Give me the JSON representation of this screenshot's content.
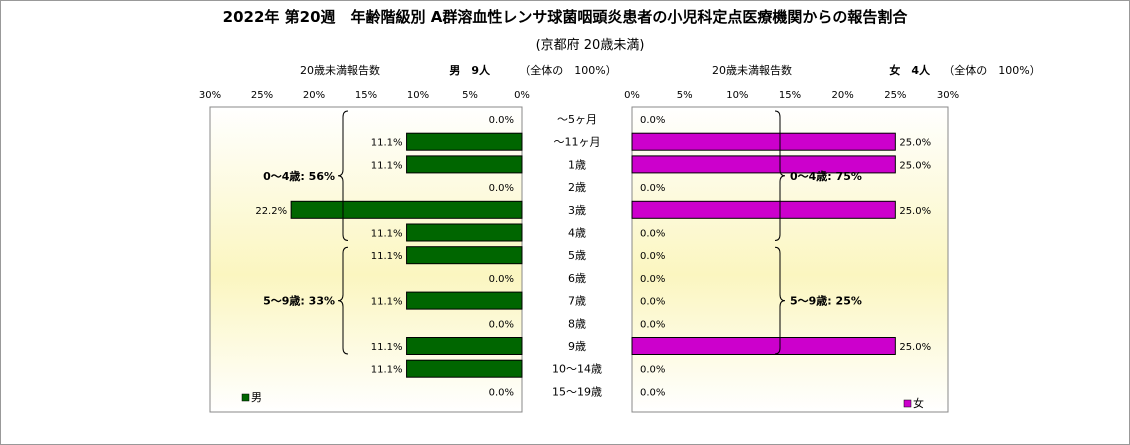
{
  "chart_data": {
    "type": "bar",
    "title": "2022年 第20週　年齢階級別 A群溶血性レンサ球菌咽頭炎患者の小児科定点医療機関からの報告割合",
    "subtitle": "(京都府 20歳未満)",
    "categories": [
      "～5ヶ月",
      "～11ヶ月",
      "1歳",
      "2歳",
      "3歳",
      "4歳",
      "5歳",
      "6歳",
      "7歳",
      "8歳",
      "9歳",
      "10～14歳",
      "15～19歳"
    ],
    "xlim": [
      0,
      30
    ],
    "ticks": [
      "0%",
      "5%",
      "10%",
      "15%",
      "20%",
      "25%",
      "30%"
    ],
    "series": [
      {
        "name": "男",
        "color": "#006600",
        "values": [
          0.0,
          11.1,
          11.1,
          0.0,
          22.2,
          11.1,
          11.1,
          0.0,
          11.1,
          0.0,
          11.1,
          11.1,
          0.0
        ],
        "labels": [
          "0.0%",
          "11.1%",
          "11.1%",
          "0.0%",
          "22.2%",
          "11.1%",
          "11.1%",
          "0.0%",
          "11.1%",
          "0.0%",
          "11.1%",
          "11.1%",
          "0.0%"
        ],
        "header_count_label": "20歳未満報告数",
        "header_total": "男　9人",
        "header_share": "（全体の　100%）",
        "legend": "男",
        "groups": [
          {
            "label": "0～4歳: 56%",
            "from": 0,
            "to": 5
          },
          {
            "label": "5～9歳: 33%",
            "from": 6,
            "to": 10
          }
        ]
      },
      {
        "name": "女",
        "color": "#cc00cc",
        "values": [
          0.0,
          25.0,
          25.0,
          0.0,
          25.0,
          0.0,
          0.0,
          0.0,
          0.0,
          0.0,
          25.0,
          0.0,
          0.0
        ],
        "labels": [
          "0.0%",
          "25.0%",
          "25.0%",
          "0.0%",
          "25.0%",
          "0.0%",
          "0.0%",
          "0.0%",
          "0.0%",
          "0.0%",
          "25.0%",
          "0.0%",
          "0.0%"
        ],
        "header_count_label": "20歳未満報告数",
        "header_total": "女　4人",
        "header_share": "（全体の　100%）",
        "legend": "女",
        "groups": [
          {
            "label": "0～4歳: 75%",
            "from": 0,
            "to": 5
          },
          {
            "label": "5～9歳: 25%",
            "from": 6,
            "to": 10
          }
        ]
      }
    ]
  }
}
